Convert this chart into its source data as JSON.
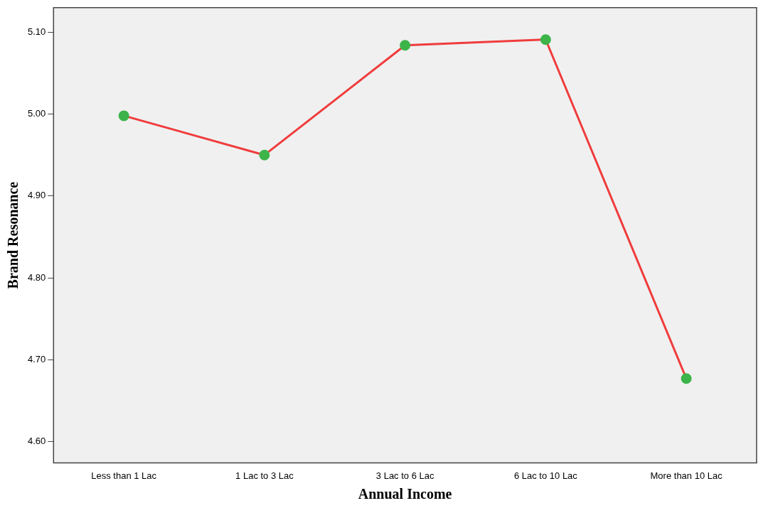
{
  "chart_data": {
    "type": "line",
    "xlabel": "Annual Income",
    "ylabel": "Brand Resonance",
    "categories": [
      "Less than 1 Lac",
      "1 Lac to 3 Lac",
      "3 Lac to 6 Lac",
      "6 Lac to 10 Lac",
      "More than 10 Lac"
    ],
    "series": [
      {
        "color": "#f03c3c",
        "colors": [
          "#3cb44a",
          "#3cb44a",
          "#3cb44a",
          "#3cb44a",
          "#3cb44a"
        ],
        "values": [
          4.998,
          4.95,
          5.084,
          5.091,
          4.677
        ]
      }
    ],
    "ylim": [
      4.574,
      5.13
    ],
    "yticks": [
      {
        "value": 4.6,
        "label": "4.60"
      },
      {
        "value": 4.7,
        "label": "4.70"
      },
      {
        "value": 4.8,
        "label": "4.80"
      },
      {
        "value": 4.9,
        "label": "4.90"
      },
      {
        "value": 5.0,
        "label": "5.00"
      },
      {
        "value": 5.1,
        "label": "5.10"
      }
    ],
    "grid": false,
    "legend": false,
    "marker": "circle",
    "line_style": "solid"
  }
}
